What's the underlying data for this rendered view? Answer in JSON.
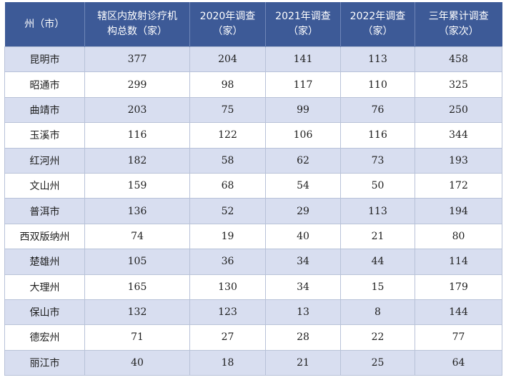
{
  "table": {
    "headers": [
      [
        "州（市）"
      ],
      [
        "辖区内放射诊疗机",
        "构总数（家）"
      ],
      [
        "2020年调查",
        "（家）"
      ],
      [
        "2021年调查",
        "（家）"
      ],
      [
        "2022年调查",
        "（家）"
      ],
      [
        "三年累计调查",
        "（家次）"
      ]
    ],
    "rows": [
      [
        "昆明市",
        "377",
        "204",
        "141",
        "113",
        "458"
      ],
      [
        "昭通市",
        "299",
        "98",
        "117",
        "110",
        "325"
      ],
      [
        "曲靖市",
        "203",
        "75",
        "99",
        "76",
        "250"
      ],
      [
        "玉溪市",
        "116",
        "122",
        "106",
        "116",
        "344"
      ],
      [
        "红河州",
        "182",
        "58",
        "62",
        "73",
        "193"
      ],
      [
        "文山州",
        "159",
        "68",
        "54",
        "50",
        "172"
      ],
      [
        "普洱市",
        "136",
        "52",
        "29",
        "113",
        "194"
      ],
      [
        "西双版纳州",
        "74",
        "19",
        "40",
        "21",
        "80"
      ],
      [
        "楚雄州",
        "105",
        "36",
        "34",
        "44",
        "114"
      ],
      [
        "大理州",
        "165",
        "130",
        "34",
        "15",
        "179"
      ],
      [
        "保山市",
        "132",
        "123",
        "13",
        "8",
        "144"
      ],
      [
        "德宏州",
        "71",
        "27",
        "28",
        "22",
        "77"
      ],
      [
        "丽江市",
        "40",
        "18",
        "21",
        "25",
        "64"
      ]
    ]
  },
  "colors": {
    "header_bg": "#3d5a97",
    "header_text": "#ffffff",
    "row_shaded": "#d8def0",
    "row_plain": "#ffffff",
    "grid": "#b8c2d8"
  }
}
